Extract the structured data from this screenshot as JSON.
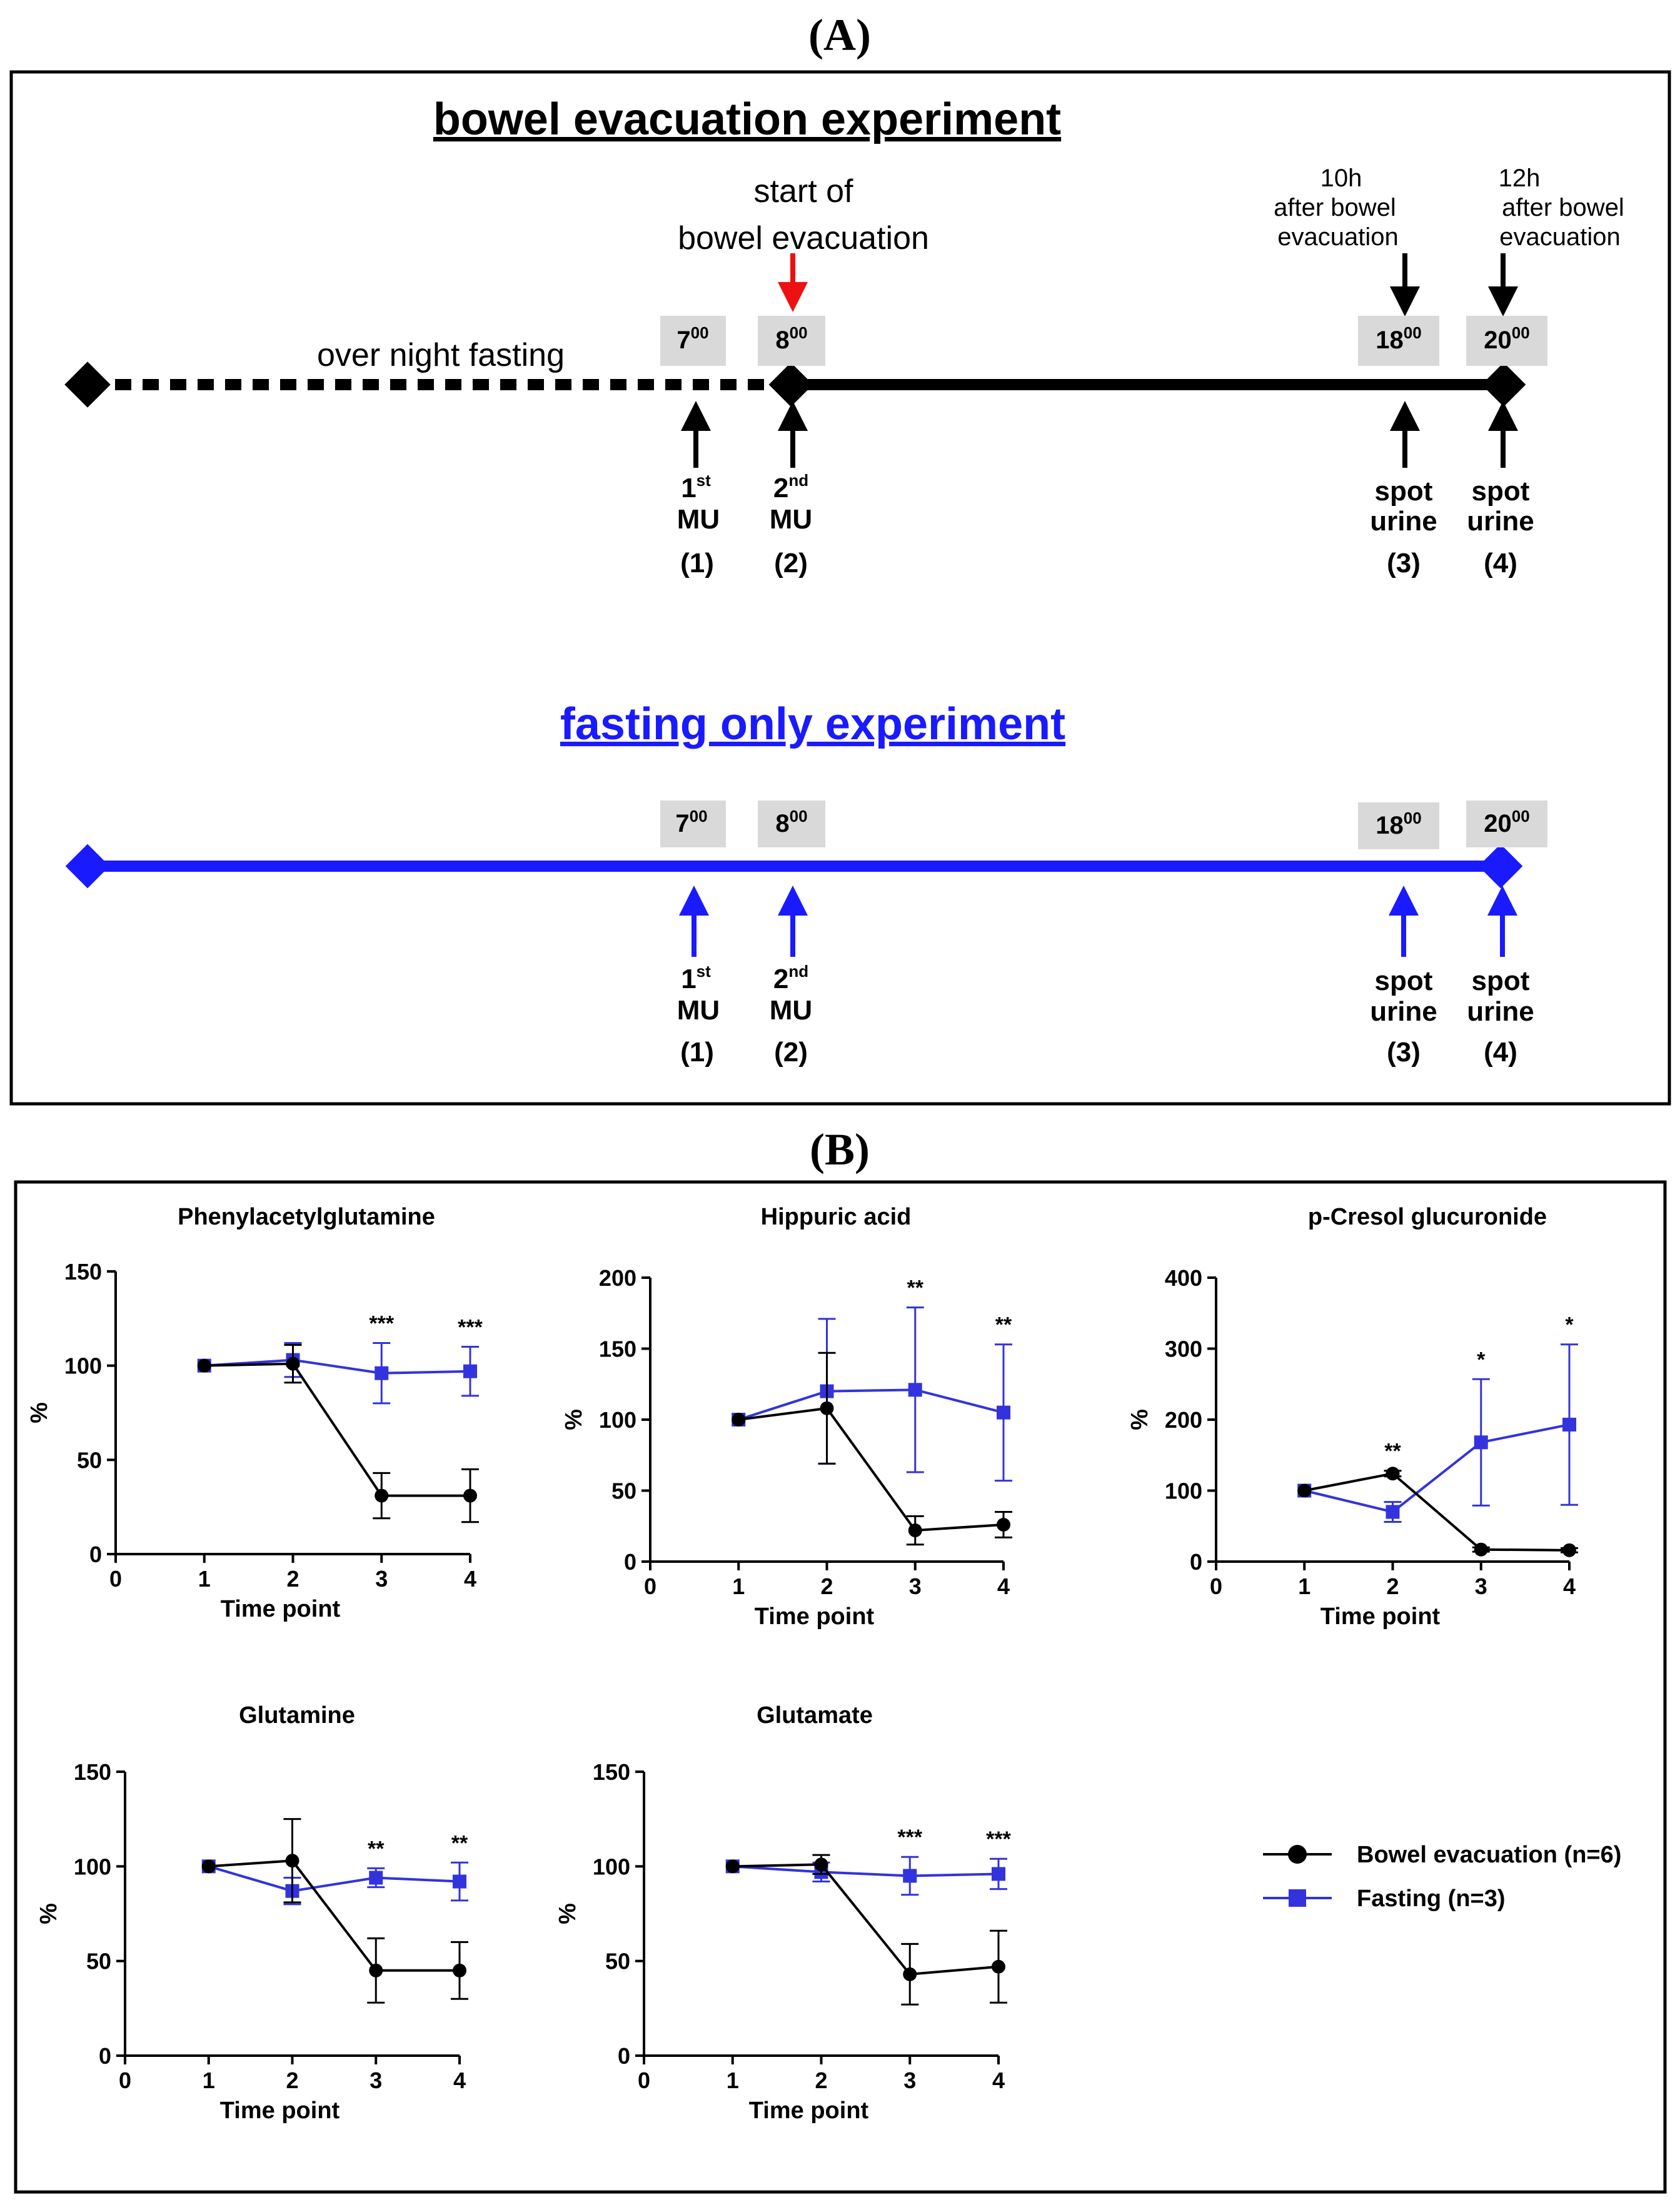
{
  "panel_a": {
    "label": "(A)",
    "bowel_title": "bowel evacuation experiment",
    "fasting_title": "fasting only experiment",
    "over_night": "over night fasting",
    "start_line1": "start of",
    "start_line2": "bowel evacuation",
    "note_10h": [
      "10h",
      "after bowel",
      "evacuation"
    ],
    "note_12h": [
      "12h",
      "after bowel",
      "evacuation"
    ],
    "times": [
      {
        "h": "7",
        "m": "00"
      },
      {
        "h": "8",
        "m": "00"
      },
      {
        "h": "18",
        "m": "00"
      },
      {
        "h": "20",
        "m": "00"
      }
    ],
    "samples": [
      {
        "l1": "1",
        "sup": "st",
        "l2": "MU",
        "num": "(1)"
      },
      {
        "l1": "2",
        "sup": "nd",
        "l2": "MU",
        "num": "(2)"
      },
      {
        "l1": "spot",
        "sup": "",
        "l2": "urine",
        "num": "(3)"
      },
      {
        "l1": "spot",
        "sup": "",
        "l2": "urine",
        "num": "(4)"
      }
    ],
    "colors": {
      "black": "#000000",
      "blue": "#1a1aff",
      "red": "#ee1111",
      "box": "#d9d9d9"
    }
  },
  "panel_b": {
    "label": "(B)",
    "legend": [
      {
        "name": "Bowel evacuation (n=6)",
        "color": "#000000",
        "marker": "circle"
      },
      {
        "name": "Fasting (n=3)",
        "color": "#3333dd",
        "marker": "square"
      }
    ]
  },
  "chart_data": [
    {
      "type": "line",
      "title": "Phenylacetylglutamine",
      "xlabel": "Time point",
      "ylabel": "%",
      "xlim": [
        0,
        4
      ],
      "ylim": [
        0,
        150
      ],
      "yticks": [
        0,
        50,
        100,
        150
      ],
      "xticks": [
        0,
        1,
        2,
        3,
        4
      ],
      "x": [
        1,
        2,
        3,
        4
      ],
      "series": [
        {
          "name": "Bowel evacuation (n=6)",
          "values": [
            100,
            101,
            31,
            31
          ],
          "err": [
            0,
            10,
            12,
            14
          ]
        },
        {
          "name": "Fasting (n=3)",
          "values": [
            100,
            103,
            96,
            97
          ],
          "err": [
            0,
            9,
            16,
            13
          ]
        }
      ],
      "annotations": [
        {
          "x": 3,
          "text": "***"
        },
        {
          "x": 4,
          "text": "***"
        }
      ]
    },
    {
      "type": "line",
      "title": "Hippuric acid",
      "xlabel": "Time point",
      "ylabel": "%",
      "xlim": [
        0,
        4
      ],
      "ylim": [
        0,
        200
      ],
      "yticks": [
        0,
        50,
        100,
        150,
        200
      ],
      "xticks": [
        0,
        1,
        2,
        3,
        4
      ],
      "x": [
        1,
        2,
        3,
        4
      ],
      "series": [
        {
          "name": "Bowel evacuation (n=6)",
          "values": [
            100,
            108,
            22,
            26
          ],
          "err": [
            0,
            39,
            10,
            9
          ]
        },
        {
          "name": "Fasting (n=3)",
          "values": [
            100,
            120,
            121,
            105
          ],
          "err": [
            0,
            51,
            58,
            48
          ]
        }
      ],
      "annotations": [
        {
          "x": 3,
          "text": "**"
        },
        {
          "x": 4,
          "text": "**"
        }
      ]
    },
    {
      "type": "line",
      "title": "p-Cresol glucuronide",
      "xlabel": "Time point",
      "ylabel": "%",
      "xlim": [
        0,
        4
      ],
      "ylim": [
        0,
        400
      ],
      "yticks": [
        0,
        100,
        200,
        300,
        400
      ],
      "xticks": [
        0,
        1,
        2,
        3,
        4
      ],
      "x": [
        1,
        2,
        3,
        4
      ],
      "series": [
        {
          "name": "Bowel evacuation (n=6)",
          "values": [
            100,
            124,
            17,
            16
          ],
          "err": [
            0,
            4,
            3,
            3
          ]
        },
        {
          "name": "Fasting (n=3)",
          "values": [
            100,
            70,
            168,
            193
          ],
          "err": [
            0,
            14,
            89,
            113
          ]
        }
      ],
      "annotations": [
        {
          "x": 2,
          "text": "**"
        },
        {
          "x": 3,
          "text": "*"
        },
        {
          "x": 4,
          "text": "*"
        }
      ]
    },
    {
      "type": "line",
      "title": "Glutamine",
      "xlabel": "Time point",
      "ylabel": "%",
      "xlim": [
        0,
        4
      ],
      "ylim": [
        0,
        150
      ],
      "yticks": [
        0,
        50,
        100,
        150
      ],
      "xticks": [
        0,
        1,
        2,
        3,
        4
      ],
      "x": [
        1,
        2,
        3,
        4
      ],
      "series": [
        {
          "name": "Bowel evacuation (n=6)",
          "values": [
            100,
            103,
            45,
            45
          ],
          "err": [
            0,
            22,
            17,
            15
          ]
        },
        {
          "name": "Fasting (n=3)",
          "values": [
            100,
            87,
            94,
            92
          ],
          "err": [
            0,
            7,
            5,
            10
          ]
        }
      ],
      "annotations": [
        {
          "x": 3,
          "text": "**"
        },
        {
          "x": 4,
          "text": "**"
        }
      ]
    },
    {
      "type": "line",
      "title": "Glutamate",
      "xlabel": "Time point",
      "ylabel": "%",
      "xlim": [
        0,
        4
      ],
      "ylim": [
        0,
        150
      ],
      "yticks": [
        0,
        50,
        100,
        150
      ],
      "xticks": [
        0,
        1,
        2,
        3,
        4
      ],
      "x": [
        1,
        2,
        3,
        4
      ],
      "series": [
        {
          "name": "Bowel evacuation (n=6)",
          "values": [
            100,
            101,
            43,
            47
          ],
          "err": [
            0,
            5,
            16,
            19
          ]
        },
        {
          "name": "Fasting (n=3)",
          "values": [
            100,
            97,
            95,
            96
          ],
          "err": [
            0,
            5,
            10,
            8
          ]
        }
      ],
      "annotations": [
        {
          "x": 3,
          "text": "***"
        },
        {
          "x": 4,
          "text": "***"
        }
      ]
    }
  ]
}
